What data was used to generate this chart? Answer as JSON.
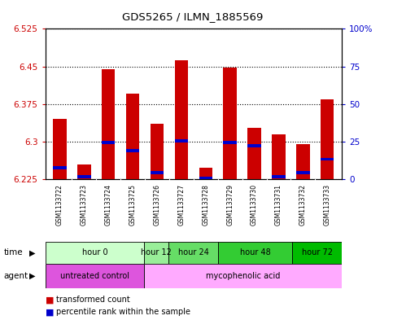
{
  "title": "GDS5265 / ILMN_1885569",
  "samples": [
    "GSM1133722",
    "GSM1133723",
    "GSM1133724",
    "GSM1133725",
    "GSM1133726",
    "GSM1133727",
    "GSM1133728",
    "GSM1133729",
    "GSM1133730",
    "GSM1133731",
    "GSM1133732",
    "GSM1133733"
  ],
  "bar_values": [
    6.345,
    6.255,
    6.445,
    6.395,
    6.335,
    6.462,
    6.248,
    6.447,
    6.328,
    6.315,
    6.295,
    6.385
  ],
  "percentile_values": [
    6.248,
    6.23,
    6.298,
    6.282,
    6.238,
    6.302,
    6.227,
    6.298,
    6.292,
    6.23,
    6.238,
    6.265
  ],
  "ymin": 6.225,
  "ymax": 6.525,
  "yticks": [
    6.225,
    6.3,
    6.375,
    6.45,
    6.525
  ],
  "ytick_labels": [
    "6.225",
    "6.3",
    "6.375",
    "6.45",
    "6.525"
  ],
  "y2ticks": [
    0,
    25,
    50,
    75,
    100
  ],
  "y2tick_labels": [
    "0",
    "25",
    "50",
    "75",
    "100%"
  ],
  "bar_color": "#cc0000",
  "percentile_color": "#0000cc",
  "bg_color": "#ffffff",
  "plot_bg": "#ffffff",
  "time_groups": [
    {
      "label": "hour 0",
      "start": 0,
      "end": 3,
      "color": "#ccffcc"
    },
    {
      "label": "hour 12",
      "start": 4,
      "end": 4,
      "color": "#99ee99"
    },
    {
      "label": "hour 24",
      "start": 5,
      "end": 6,
      "color": "#66dd66"
    },
    {
      "label": "hour 48",
      "start": 7,
      "end": 9,
      "color": "#33cc33"
    },
    {
      "label": "hour 72",
      "start": 10,
      "end": 11,
      "color": "#00bb00"
    }
  ],
  "agent_groups": [
    {
      "label": "untreated control",
      "start": 0,
      "end": 3,
      "color": "#dd55dd"
    },
    {
      "label": "mycophenolic acid",
      "start": 4,
      "end": 11,
      "color": "#ffaaff"
    }
  ],
  "legend_items": [
    {
      "label": "transformed count",
      "color": "#cc0000"
    },
    {
      "label": "percentile rank within the sample",
      "color": "#0000cc"
    }
  ],
  "title_color": "#000000",
  "left_axis_color": "#cc0000",
  "right_axis_color": "#0000cc"
}
